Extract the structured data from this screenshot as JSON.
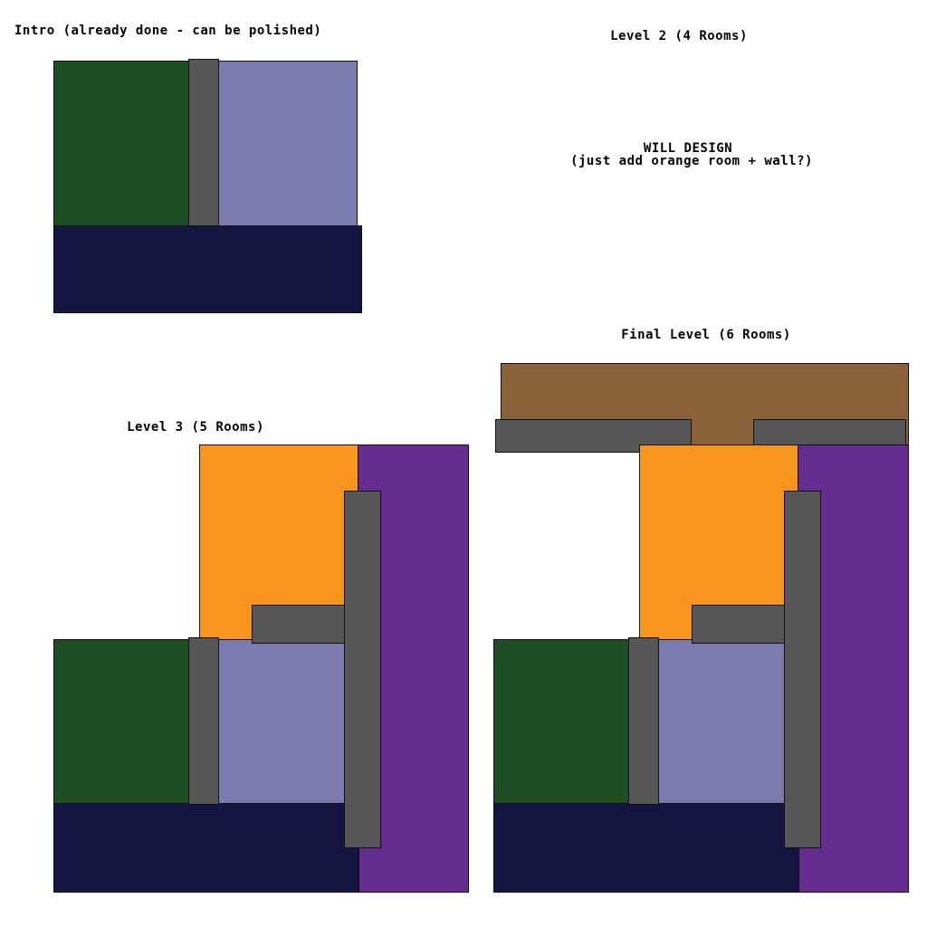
{
  "labels": {
    "intro": "Intro (already done - can be polished)",
    "level2": "Level 2 (4 Rooms)",
    "will_design_title": "WILL DESIGN",
    "will_design_note": "(just add orange room + wall?)",
    "level3": "Level 3 (5 Rooms)",
    "final": "Final Level (6 Rooms)"
  },
  "colors": {
    "green": "#1d4e24",
    "lavender": "#7b7bb0",
    "navy": "#151542",
    "orange": "#f7951f",
    "purple": "#652d90",
    "brown": "#8b6239",
    "wall": "#575757"
  }
}
